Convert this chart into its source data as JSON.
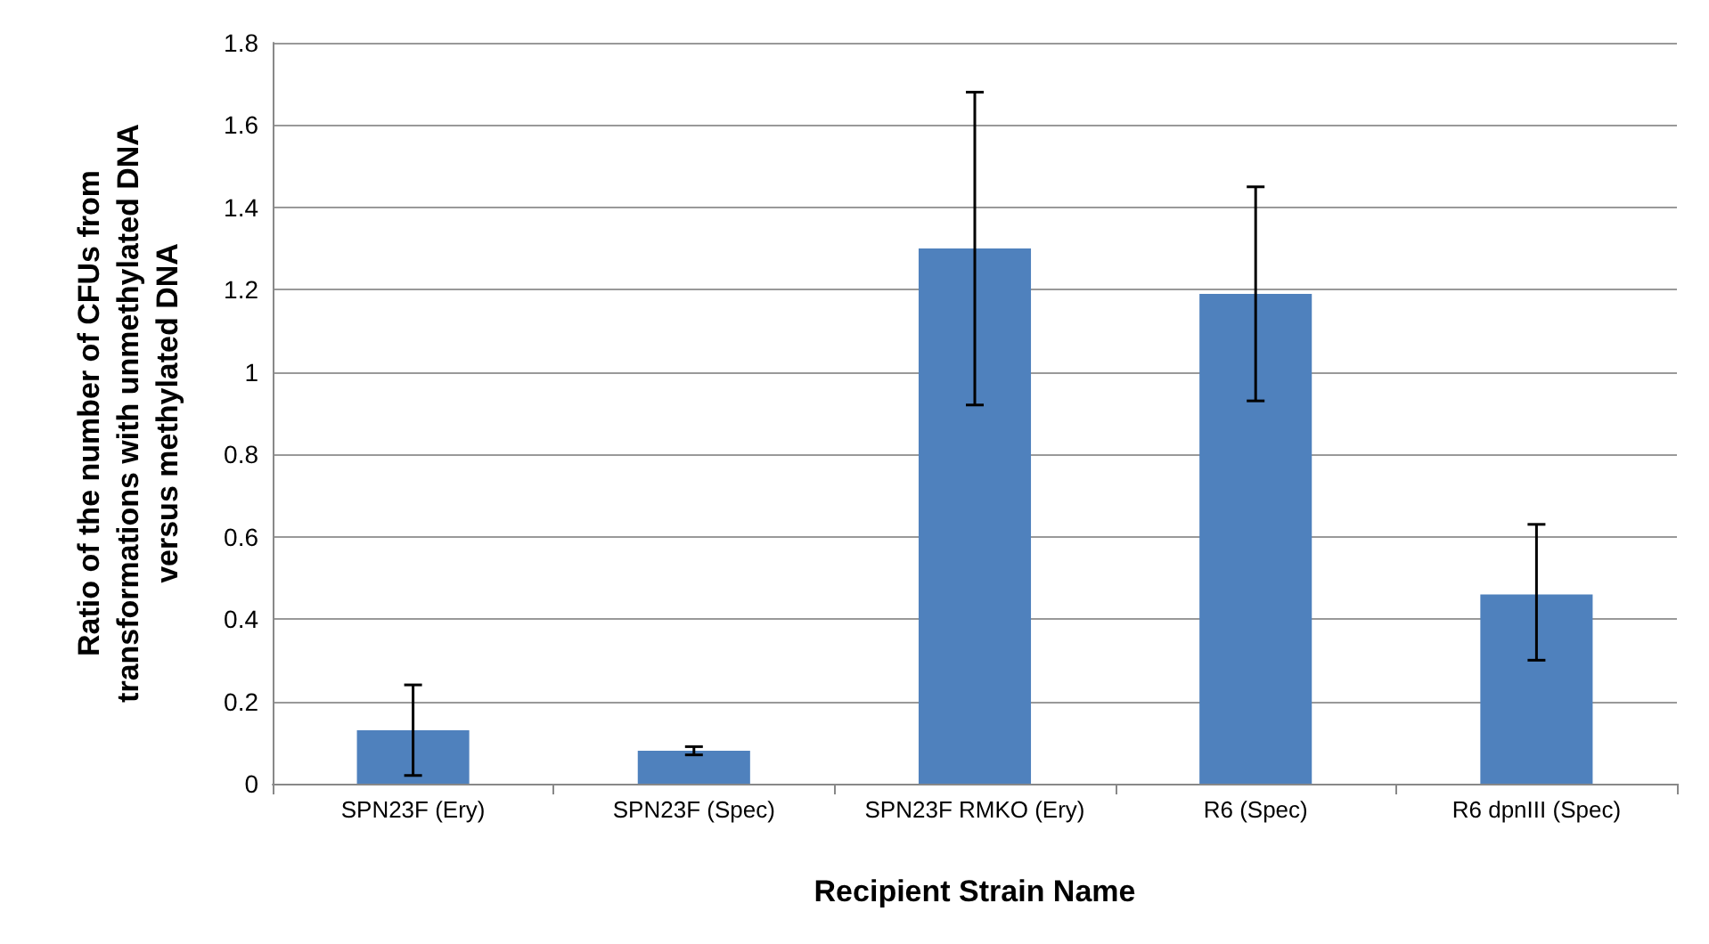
{
  "chart_data": {
    "type": "bar",
    "xlabel": "Recipient Strain Name",
    "ylabel": "Ratio of the number of CFUs from\ntransformations with unmethylated DNA\nversus methylated DNA",
    "categories": [
      "SPN23F (Ery)",
      "SPN23F (Spec)",
      "SPN23F RMKO (Ery)",
      "R6 (Spec)",
      "R6 dpnIII (Spec)"
    ],
    "values": [
      0.13,
      0.08,
      1.3,
      1.19,
      0.46
    ],
    "errors": [
      [
        0.02,
        0.24
      ],
      [
        0.07,
        0.09
      ],
      [
        0.92,
        1.68
      ],
      [
        0.93,
        1.45
      ],
      [
        0.3,
        0.63
      ]
    ],
    "color": "#4f81bd",
    "ylim": [
      0,
      1.8
    ],
    "yticks": [
      0,
      0.2,
      0.4,
      0.6,
      0.8,
      1,
      1.2,
      1.4,
      1.6,
      1.8
    ],
    "grid": "y"
  }
}
